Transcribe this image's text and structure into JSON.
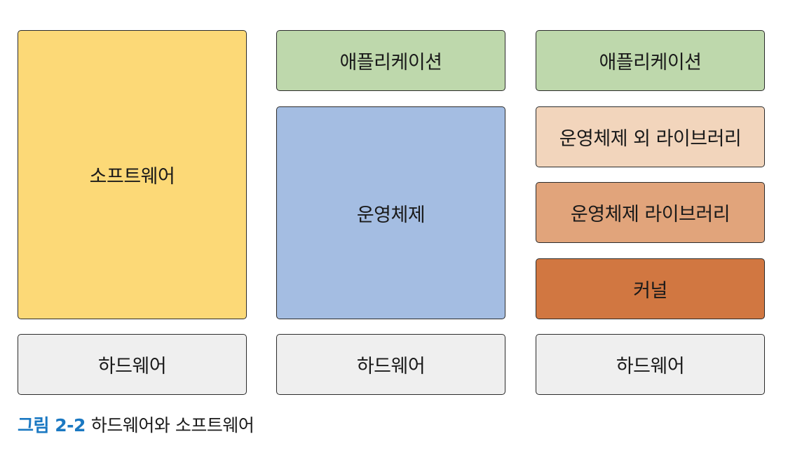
{
  "columns": [
    {
      "software": "소프트웨어",
      "hardware": "하드웨어"
    },
    {
      "application": "애플리케이션",
      "os": "운영체제",
      "hardware": "하드웨어"
    },
    {
      "application": "애플리케이션",
      "non_os_library": "운영체제 외 라이브러리",
      "os_library": "운영체제 라이브러리",
      "kernel": "커널",
      "hardware": "하드웨어"
    }
  ],
  "caption": {
    "figure_number": "그림 2-2",
    "text": "하드웨어와 소프트웨어"
  },
  "colors": {
    "software": "#fcd977",
    "application": "#bed8ac",
    "os": "#a4bde2",
    "non_os_library": "#f2d5bc",
    "os_library": "#e1a47b",
    "kernel": "#d17741",
    "hardware": "#efefef",
    "caption_accent": "#1a78c2"
  }
}
